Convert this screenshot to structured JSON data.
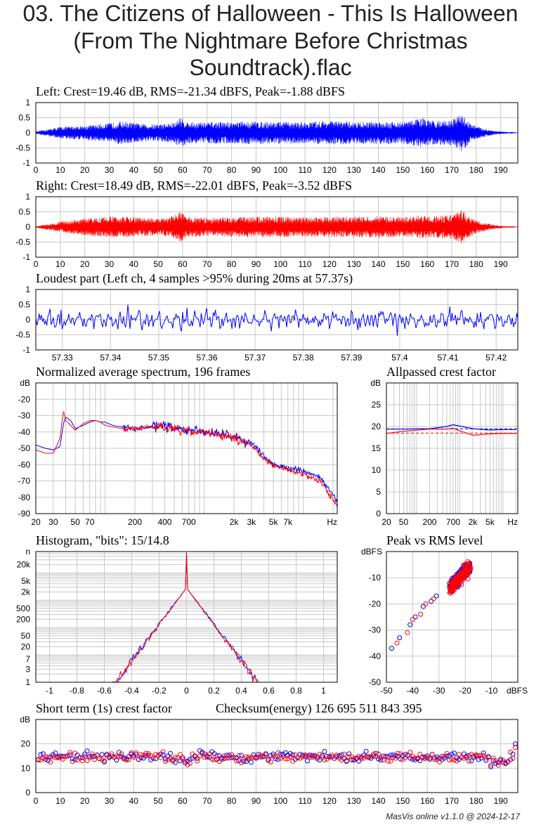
{
  "page": {
    "title": "03. The Citizens of Halloween - This Is Halloween (From The Nightmare Before Christmas Soundtrack).flac"
  },
  "credit": "MasVis online v1.1.0 @ 2024-12-17",
  "colors": {
    "left": "#0000ff",
    "right": "#ff0000",
    "grid": "#c8c8c8",
    "text": "#000000"
  },
  "chart_data": [
    {
      "id": "waveform-left",
      "type": "line",
      "title": "Left: Crest=19.46 dB, RMS=-21.34 dBFS, Peak=-1.88 dBFS",
      "xlim": [
        0,
        197
      ],
      "ylim": [
        -1,
        1
      ],
      "xticks": [
        0,
        10,
        20,
        30,
        40,
        50,
        60,
        70,
        80,
        90,
        100,
        110,
        120,
        130,
        140,
        150,
        160,
        170,
        180,
        190
      ],
      "yticks": [
        "1",
        "0.5",
        "0",
        "-0.5",
        "-1"
      ],
      "envelope": [
        [
          0,
          0.04
        ],
        [
          5,
          0.12
        ],
        [
          10,
          0.2
        ],
        [
          20,
          0.24
        ],
        [
          28,
          0.3
        ],
        [
          35,
          0.38
        ],
        [
          45,
          0.28
        ],
        [
          52,
          0.3
        ],
        [
          57,
          0.35
        ],
        [
          59,
          0.52
        ],
        [
          62,
          0.36
        ],
        [
          70,
          0.35
        ],
        [
          80,
          0.36
        ],
        [
          90,
          0.38
        ],
        [
          100,
          0.36
        ],
        [
          110,
          0.35
        ],
        [
          120,
          0.4
        ],
        [
          130,
          0.36
        ],
        [
          140,
          0.38
        ],
        [
          150,
          0.36
        ],
        [
          158,
          0.5
        ],
        [
          161,
          0.4
        ],
        [
          170,
          0.42
        ],
        [
          174,
          0.62
        ],
        [
          178,
          0.3
        ],
        [
          182,
          0.16
        ],
        [
          188,
          0.06
        ],
        [
          193,
          0.02
        ],
        [
          197,
          0.0
        ]
      ]
    },
    {
      "id": "waveform-right",
      "type": "line",
      "title": "Right: Crest=18.49 dB, RMS=-22.01 dBFS, Peak=-3.52 dBFS",
      "xlim": [
        0,
        197
      ],
      "ylim": [
        -1,
        1
      ],
      "xticks": [
        0,
        10,
        20,
        30,
        40,
        50,
        60,
        70,
        80,
        90,
        100,
        110,
        120,
        130,
        140,
        150,
        160,
        170,
        180,
        190
      ],
      "yticks": [
        "1",
        "0.5",
        "0",
        "-0.5",
        "-1"
      ],
      "envelope": [
        [
          0,
          0.02
        ],
        [
          5,
          0.1
        ],
        [
          10,
          0.18
        ],
        [
          20,
          0.28
        ],
        [
          28,
          0.34
        ],
        [
          35,
          0.35
        ],
        [
          45,
          0.3
        ],
        [
          52,
          0.28
        ],
        [
          57,
          0.4
        ],
        [
          59,
          0.52
        ],
        [
          62,
          0.34
        ],
        [
          70,
          0.3
        ],
        [
          80,
          0.34
        ],
        [
          90,
          0.34
        ],
        [
          100,
          0.34
        ],
        [
          110,
          0.32
        ],
        [
          120,
          0.34
        ],
        [
          130,
          0.34
        ],
        [
          140,
          0.36
        ],
        [
          150,
          0.32
        ],
        [
          158,
          0.38
        ],
        [
          161,
          0.35
        ],
        [
          170,
          0.42
        ],
        [
          174,
          0.56
        ],
        [
          178,
          0.3
        ],
        [
          182,
          0.16
        ],
        [
          188,
          0.06
        ],
        [
          193,
          0.02
        ],
        [
          197,
          0.0
        ]
      ]
    },
    {
      "id": "loudest-part",
      "type": "line",
      "title": "Loudest part (Left ch, 4 samples >95% during 20ms at 57.37s)",
      "xlim": [
        57.3245,
        57.4245
      ],
      "ylim": [
        -1,
        1
      ],
      "xticks": [
        "57.33",
        "57.34",
        "57.35",
        "57.36",
        "57.37",
        "57.38",
        "57.39",
        "57.4",
        "57.41",
        "57.42"
      ],
      "yticks": [
        "1",
        "0.5",
        "0",
        "-0.5",
        "-1"
      ]
    },
    {
      "id": "spectrum",
      "type": "line",
      "title": "Normalized average spectrum, 196 frames",
      "unit_label": "dB",
      "ylim": [
        -90,
        -10
      ],
      "xlim": [
        20,
        22050
      ],
      "xticks": [
        "20",
        "30",
        "50",
        "70",
        "200",
        "400",
        "700",
        "2k",
        "3k",
        "5k",
        "7k",
        "Hz"
      ],
      "yticks": [
        "-20",
        "-30",
        "-40",
        "-50",
        "-60",
        "-70",
        "-80",
        "-90"
      ],
      "series": [
        {
          "x": [
            20,
            25,
            30,
            35,
            38,
            40,
            45,
            50,
            60,
            70,
            80,
            90,
            100,
            120,
            150,
            200,
            300,
            400,
            500,
            700,
            1000,
            1500,
            2000,
            3000,
            4000,
            5000,
            7000,
            10000,
            15000,
            20000,
            22050
          ],
          "values": [
            -48,
            -50,
            -51,
            -49,
            -35,
            -31,
            -33,
            -38,
            -36,
            -34,
            -33,
            -34,
            -34,
            -36,
            -37,
            -38,
            -37,
            -36,
            -38,
            -39,
            -40,
            -41,
            -43,
            -47,
            -54,
            -60,
            -62,
            -64,
            -68,
            -79,
            -82
          ]
        },
        {
          "x": [
            20,
            25,
            30,
            35,
            38,
            40,
            45,
            50,
            60,
            70,
            80,
            90,
            100,
            120,
            150,
            200,
            300,
            400,
            500,
            700,
            1000,
            1500,
            2000,
            3000,
            4000,
            5000,
            7000,
            10000,
            15000,
            20000,
            22050
          ],
          "values": [
            -51,
            -53,
            -53,
            -44,
            -27,
            -33,
            -36,
            -39,
            -35,
            -33,
            -33,
            -34,
            -36,
            -37,
            -38,
            -38,
            -37,
            -37,
            -39,
            -40,
            -40,
            -42,
            -44,
            -48,
            -56,
            -61,
            -63,
            -66,
            -70,
            -82,
            -86
          ]
        }
      ]
    },
    {
      "id": "allpassed-crest",
      "type": "line",
      "title": "Allpassed crest factor",
      "unit_label": "dB",
      "ylim": [
        0,
        30
      ],
      "xticks": [
        "20",
        "50",
        "200",
        "700",
        "2k",
        "5k",
        "Hz"
      ],
      "yticks": [
        "25",
        "20",
        "15",
        "10",
        "5",
        "0"
      ],
      "series": [
        {
          "x": [
            20,
            50,
            200,
            500,
            700,
            1000,
            2000,
            5000,
            10000,
            20000
          ],
          "values": [
            19.4,
            19.4,
            19.5,
            20.0,
            20.4,
            20.1,
            19.5,
            19.2,
            19.3,
            19.3
          ]
        },
        {
          "x": [
            20,
            50,
            200,
            500,
            700,
            1000,
            2000,
            5000,
            10000,
            20000
          ],
          "values": [
            18.4,
            18.9,
            19.4,
            19.4,
            19.6,
            19.0,
            18.0,
            18.3,
            18.4,
            18.4
          ]
        }
      ],
      "reference": [
        19.46,
        18.49
      ]
    },
    {
      "id": "histogram",
      "type": "line",
      "title": "Histogram, \"bits\": 15/14.8",
      "unit_label": "n",
      "xlim": [
        -1.1,
        1.1
      ],
      "xticks": [
        "-1",
        "-0.8",
        "-0.6",
        "-0.4",
        "-0.2",
        "0",
        "0.2",
        "0.4",
        "0.6",
        "0.8",
        "1"
      ],
      "yticks": [
        "20k",
        "5k",
        "2k",
        "500",
        "200",
        "50",
        "20",
        "7",
        "3",
        "1"
      ]
    },
    {
      "id": "peak-vs-rms",
      "type": "scatter",
      "title": "Peak vs RMS level",
      "unit_label": "dBFS",
      "xlim": [
        -50,
        0
      ],
      "ylim": [
        -50,
        0
      ],
      "xticks": [
        "-50",
        "-40",
        "-30",
        "-20",
        "-10",
        "dBFS"
      ],
      "yticks": [
        "-10",
        "-20",
        "-30",
        "-40",
        "-50"
      ]
    },
    {
      "id": "short-term-crest",
      "type": "scatter",
      "title": "Short term (1s) crest factor",
      "checksum": "Checksum(energy)  126 695 511 843 395",
      "unit_label": "dB",
      "xlim": [
        0,
        197
      ],
      "ylim": [
        0,
        30
      ],
      "xticks": [
        "0",
        "10",
        "20",
        "30",
        "40",
        "50",
        "60",
        "70",
        "80",
        "90",
        "100",
        "110",
        "120",
        "130",
        "140",
        "150",
        "160",
        "170",
        "180",
        "190"
      ],
      "yticks": [
        "20",
        "10",
        "0"
      ]
    }
  ]
}
